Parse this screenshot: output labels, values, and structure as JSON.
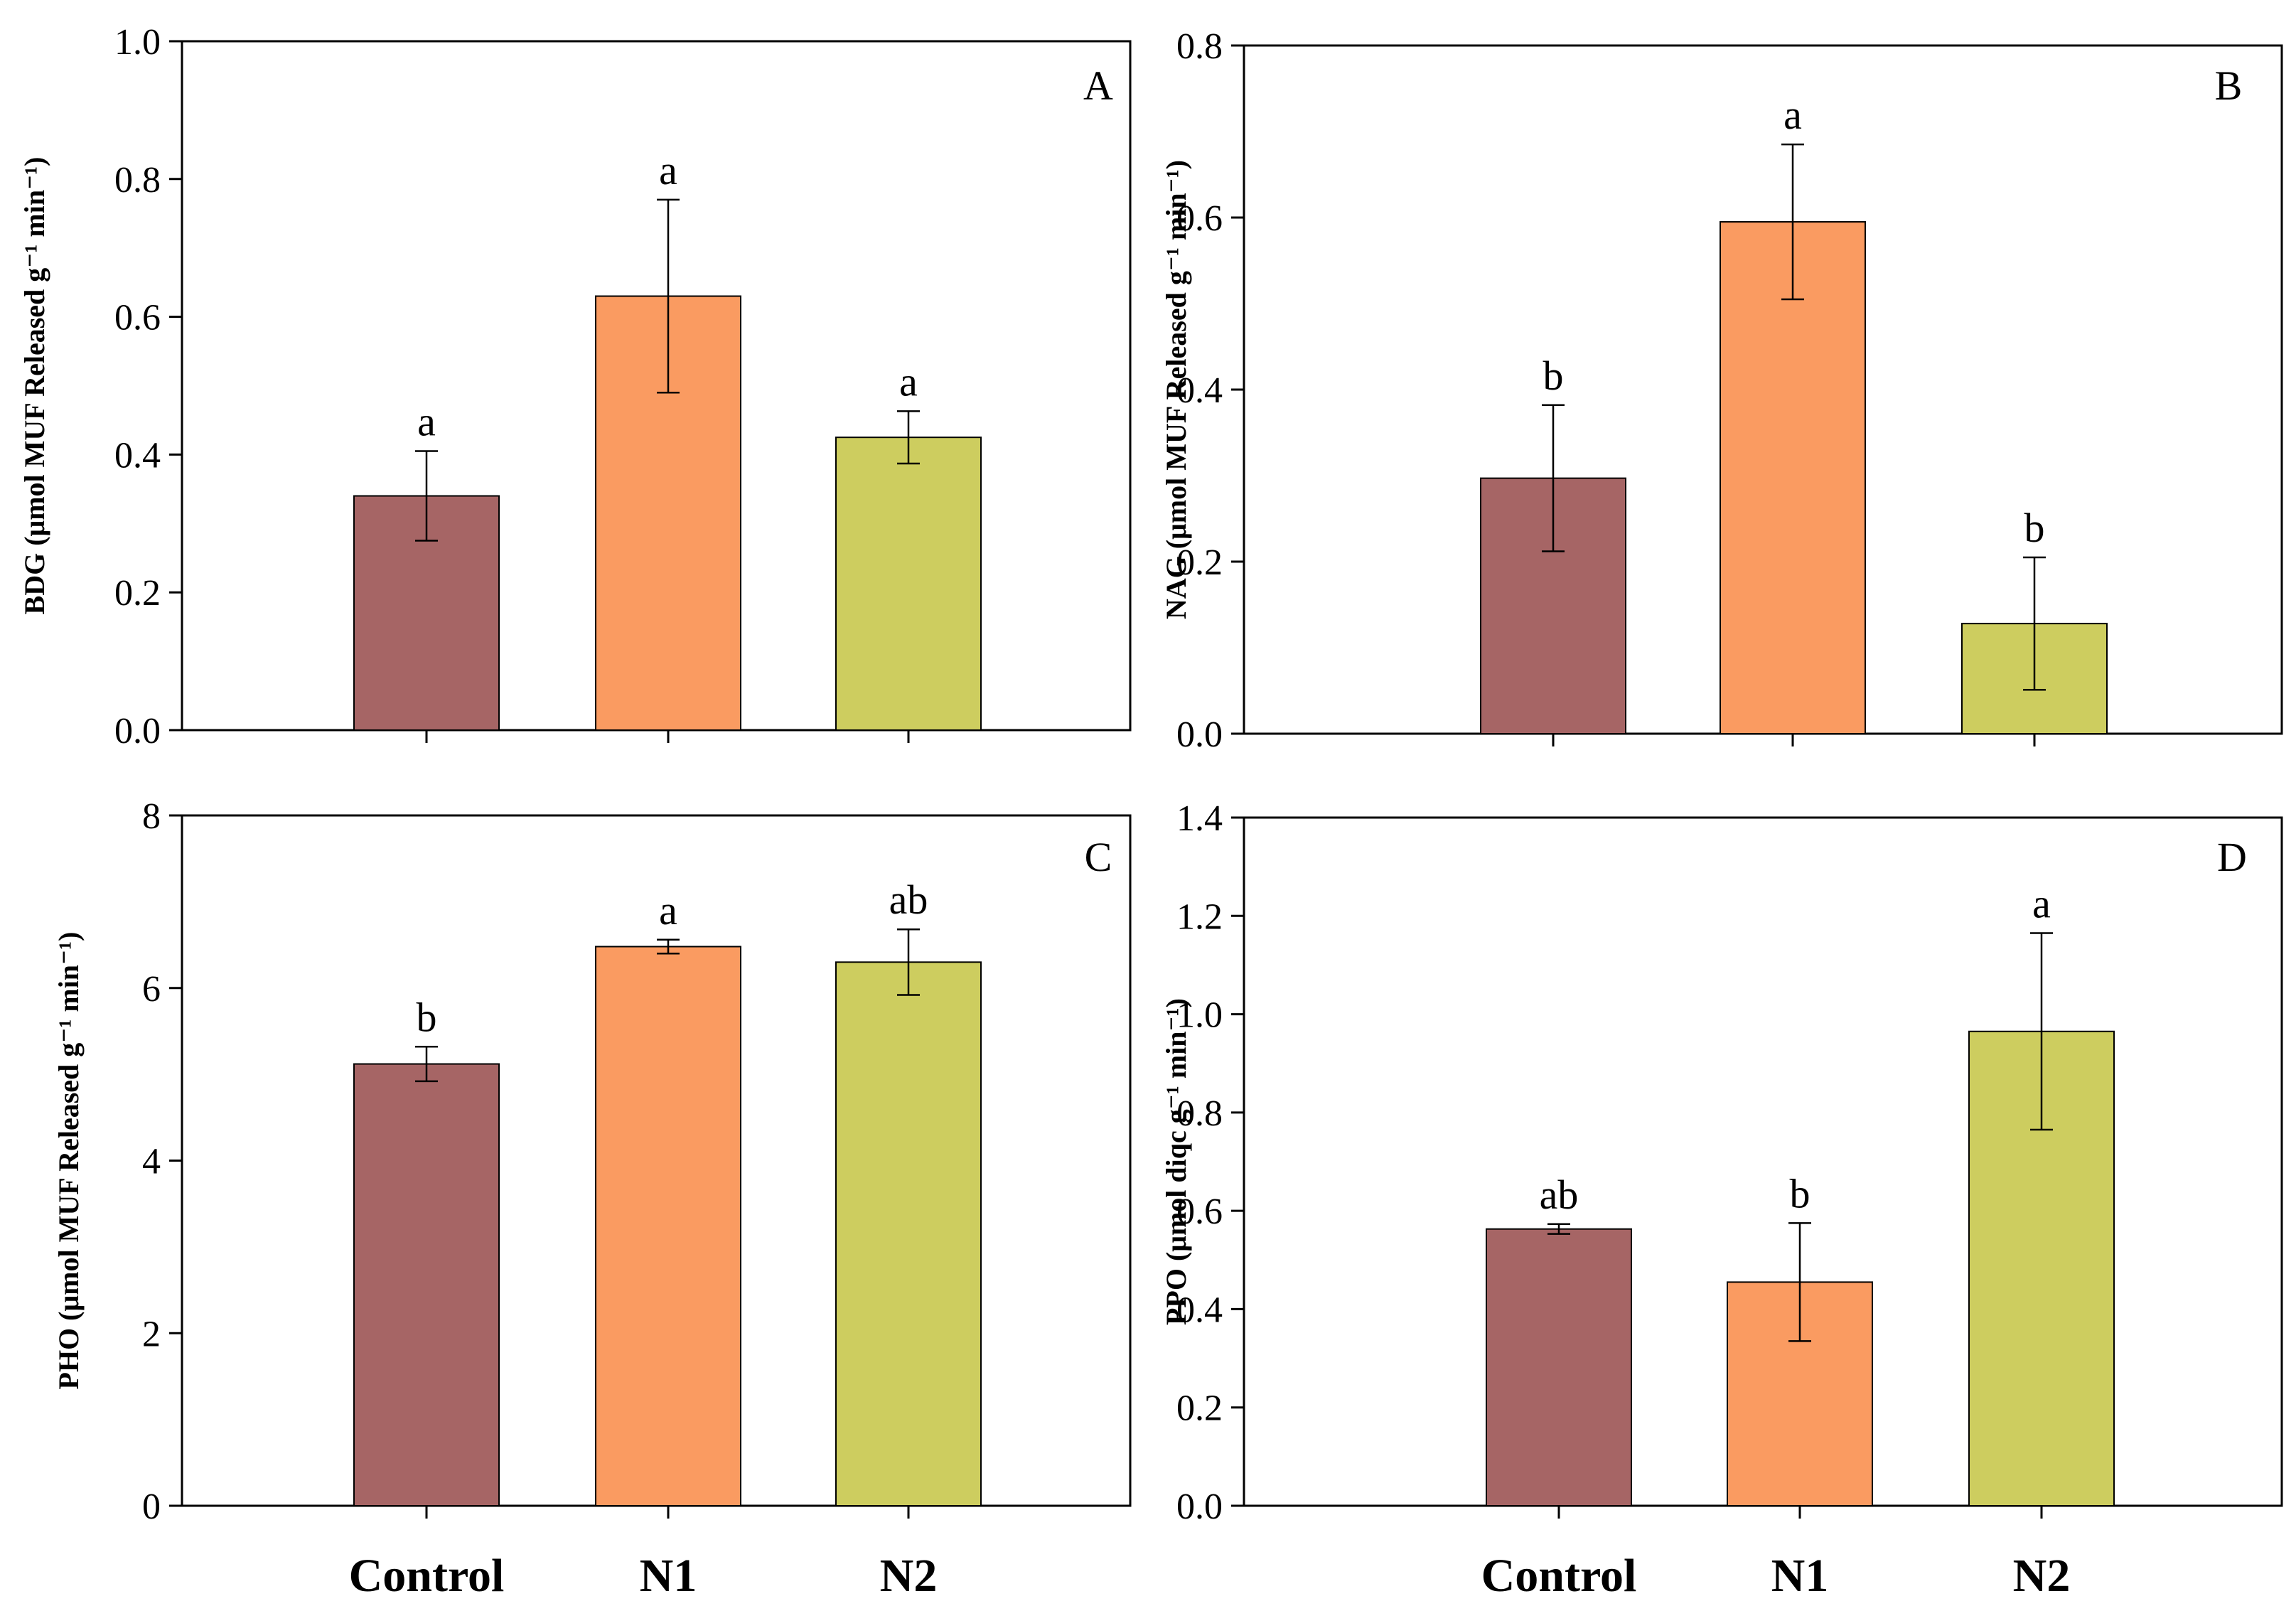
{
  "chart_data": [
    {
      "type": "bar",
      "panel": "A",
      "categories": [
        "Control",
        "N1",
        "N2"
      ],
      "values": [
        0.34,
        0.63,
        0.425
      ],
      "errors": [
        0.065,
        0.14,
        0.038
      ],
      "significance": [
        "a",
        "a",
        "a"
      ],
      "ylabel": "BDG (μmol MUF Released g⁻¹ min⁻¹)",
      "ylim": [
        0,
        1.0
      ],
      "yticks": [
        "0.0",
        "0.2",
        "0.4",
        "0.6",
        "0.8",
        "1.0"
      ],
      "colors": [
        "#a66565",
        "#fa9b61",
        "#cdcd5f"
      ]
    },
    {
      "type": "bar",
      "panel": "B",
      "categories": [
        "Control",
        "N1",
        "N2"
      ],
      "values": [
        0.297,
        0.595,
        0.128
      ],
      "errors": [
        0.085,
        0.09,
        0.077
      ],
      "significance": [
        "b",
        "a",
        "b"
      ],
      "ylabel": "NAG (μmol MUF Released g⁻¹ min⁻¹)",
      "ylim": [
        0,
        0.8
      ],
      "yticks": [
        "0.0",
        "0.2",
        "0.4",
        "0.6",
        "0.8"
      ],
      "colors": [
        "#a66565",
        "#fa9b61",
        "#cdcd5f"
      ]
    },
    {
      "type": "bar",
      "panel": "C",
      "categories": [
        "Control",
        "N1",
        "N2"
      ],
      "values": [
        5.12,
        6.48,
        6.3
      ],
      "errors": [
        0.2,
        0.08,
        0.38
      ],
      "significance": [
        "b",
        "a",
        "ab"
      ],
      "ylabel": "PHO (μmol MUF Released g⁻¹ min⁻¹)",
      "ylim": [
        0,
        8
      ],
      "yticks": [
        "0",
        "2",
        "4",
        "6",
        "8"
      ],
      "colors": [
        "#a66565",
        "#fa9b61",
        "#cdcd5f"
      ]
    },
    {
      "type": "bar",
      "panel": "D",
      "categories": [
        "Control",
        "N1",
        "N2"
      ],
      "values": [
        0.563,
        0.455,
        0.965
      ],
      "errors": [
        0.01,
        0.12,
        0.2
      ],
      "significance": [
        "ab",
        "b",
        "a"
      ],
      "ylabel": "PPO (μmol diqc g⁻¹ min⁻¹)",
      "ylim": [
        0,
        1.4
      ],
      "yticks": [
        "0.0",
        "0.2",
        "0.4",
        "0.6",
        "0.8",
        "1.0",
        "1.2",
        "1.4"
      ],
      "colors": [
        "#a66565",
        "#fa9b61",
        "#cdcd5f"
      ]
    }
  ]
}
